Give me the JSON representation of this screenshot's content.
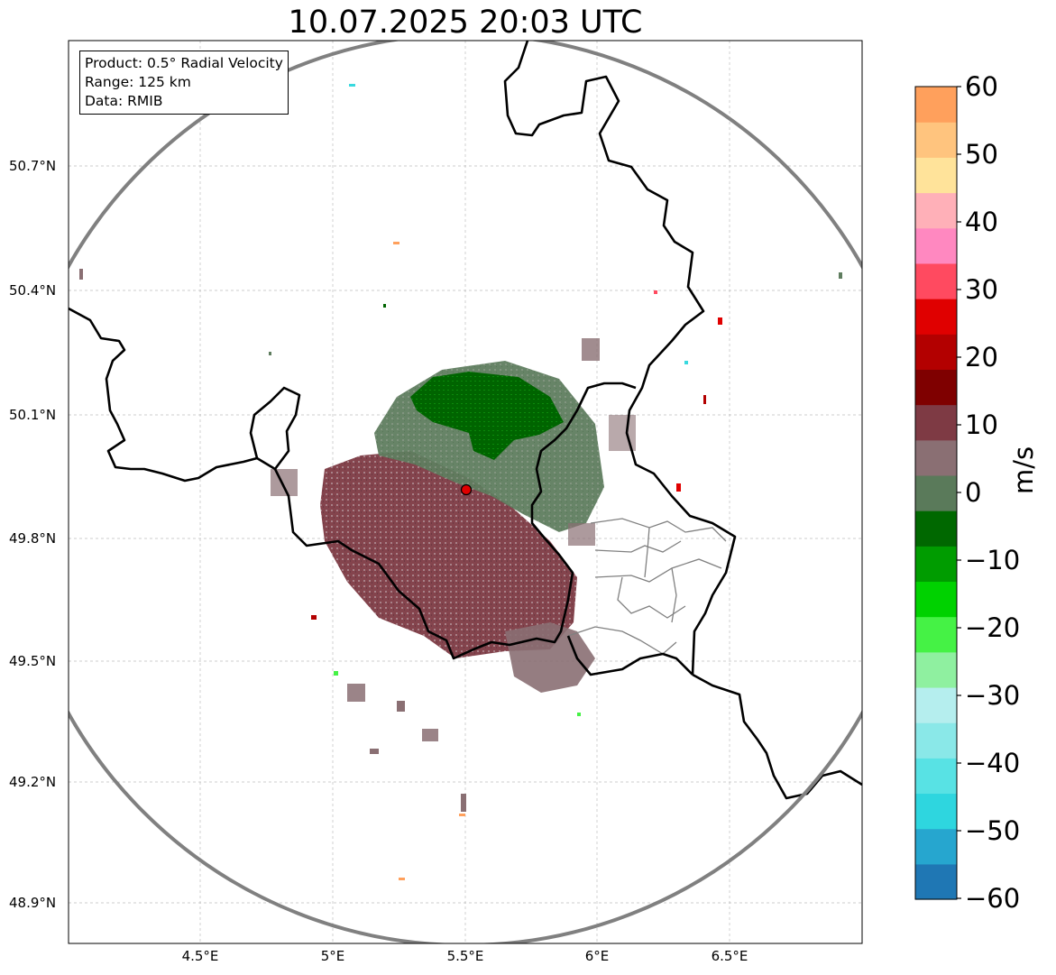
{
  "title": "10.07.2025 20:03 UTC",
  "info": {
    "product": "Product: 0.5° Radial Velocity",
    "range": "Range: 125 km",
    "source": "Data: RMIB"
  },
  "axes": {
    "lat_labels": [
      "50.7°N",
      "50.4°N",
      "50.1°N",
      "49.8°N",
      "49.5°N",
      "49.2°N",
      "48.9°N"
    ],
    "lon_labels": [
      "4.5°E",
      "5°E",
      "5.5°E",
      "6°E",
      "6.5°E"
    ]
  },
  "colorbar": {
    "unit": "m/s",
    "ticks": [
      "60",
      "50",
      "40",
      "30",
      "20",
      "10",
      "0",
      "−10",
      "−20",
      "−30",
      "−40",
      "−50",
      "−60"
    ],
    "range": [
      -60,
      60
    ],
    "colors": [
      "#1f77b4",
      "#26a6cf",
      "#2ed6df",
      "#58e2e4",
      "#8ae8e8",
      "#b5eeee",
      "#8ff0a0",
      "#45f245",
      "#00d200",
      "#009c00",
      "#006800",
      "#5a7a5a",
      "#8a6f73",
      "#7e3a44",
      "#7f0000",
      "#b30000",
      "#e00000",
      "#ff4a60",
      "#ff88c0",
      "#ffb0b8",
      "#ffe39a",
      "#ffc47e",
      "#ffa05c"
    ]
  },
  "radar": {
    "site": "RMIB",
    "range_km": 125
  }
}
